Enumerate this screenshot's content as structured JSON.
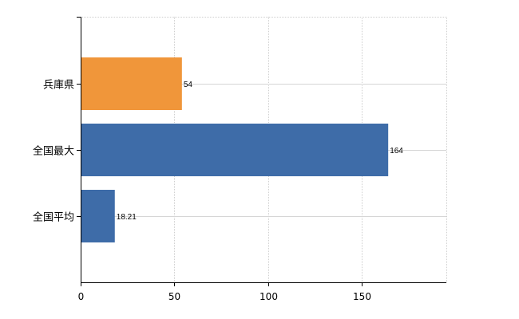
{
  "chart_data": {
    "type": "bar",
    "orientation": "horizontal",
    "categories": [
      "兵庫県",
      "全国最大",
      "全国平均"
    ],
    "values": [
      54,
      164,
      18.21
    ],
    "value_labels": [
      "54",
      "164",
      "18.21"
    ],
    "colors": [
      "#f0963a",
      "#3e6ca8",
      "#3e6ca8"
    ],
    "xlim": [
      0,
      195
    ],
    "x_ticks": [
      0,
      50,
      100,
      150
    ],
    "x_tick_labels": [
      "0",
      "50",
      "100",
      "150"
    ],
    "title": "",
    "xlabel": "",
    "ylabel": "",
    "grid": true,
    "legend": "none"
  }
}
